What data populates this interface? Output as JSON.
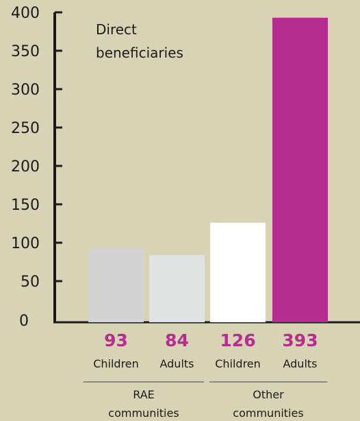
{
  "chart_data": {
    "type": "bar",
    "title": "Direct beneficiaries",
    "xlabel": "",
    "ylabel": "",
    "ylim": [
      0,
      400
    ],
    "yticks": [
      0,
      50,
      100,
      150,
      200,
      250,
      300,
      350,
      400
    ],
    "grid": false,
    "categories": [
      "Children",
      "Adults",
      "Children",
      "Adults"
    ],
    "values": [
      93,
      84,
      126,
      393
    ],
    "bar_colors": [
      "#d3d3d3",
      "#e0e3e1",
      "#ffffff",
      "#b52d8f"
    ],
    "value_label_color": "#b52d8f",
    "groups": [
      {
        "label_line1": "RAE",
        "label_line2": "communities",
        "members": [
          0,
          1
        ]
      },
      {
        "label_line1": "Other",
        "label_line2": "communities",
        "members": [
          2,
          3
        ]
      }
    ]
  },
  "colors": {
    "background": "#d8d3b4",
    "axis": "#1a1a1a",
    "separator": "#8a8a8a"
  }
}
